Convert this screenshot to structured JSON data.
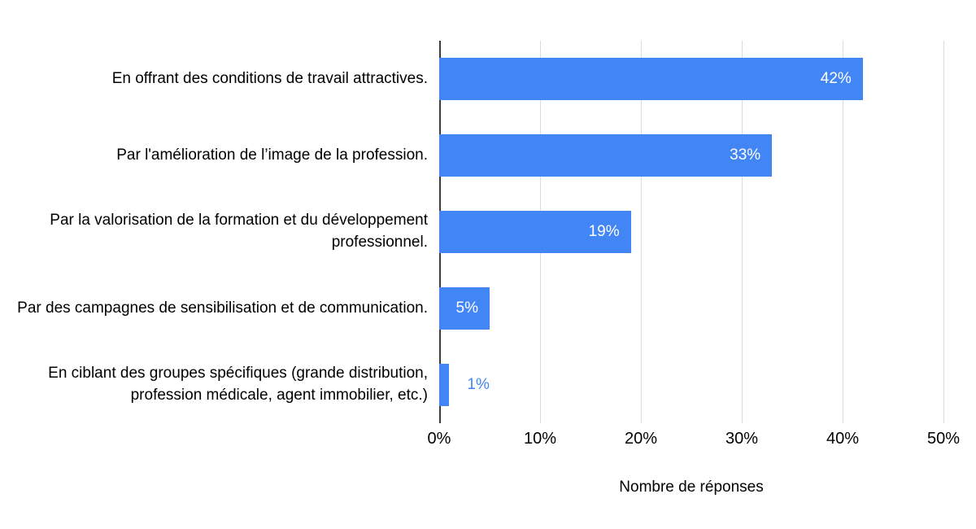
{
  "chart_data": {
    "type": "bar",
    "orientation": "horizontal",
    "title": "",
    "categories": [
      "En offrant des conditions de travail attractives.",
      "Par l'amélioration de l’image de la profession.",
      "Par la valorisation de la formation et du développement professionnel.",
      "Par des campagnes de sensibilisation et de communication.",
      "En ciblant des groupes spécifiques (grande distribution, profession médicale, agent immobilier, etc.)"
    ],
    "values": [
      42,
      33,
      19,
      5,
      1
    ],
    "value_labels": [
      "42%",
      "33%",
      "19%",
      "5%",
      "1%"
    ],
    "xlabel": "Nombre de réponses",
    "ylabel": "",
    "xlim": [
      0,
      50
    ],
    "xticks": [
      "0%",
      "10%",
      "20%",
      "30%",
      "40%",
      "50%"
    ],
    "xtick_values": [
      0,
      10,
      20,
      30,
      40,
      50
    ],
    "grid": true,
    "legend": "none",
    "colors": {
      "bar": "#4285f4",
      "label_inside": "#ffffff",
      "label_outside": "#4285f4",
      "gridline": "#dadce0",
      "zero_axis": "#3c3c3c",
      "text": "#000000"
    }
  }
}
